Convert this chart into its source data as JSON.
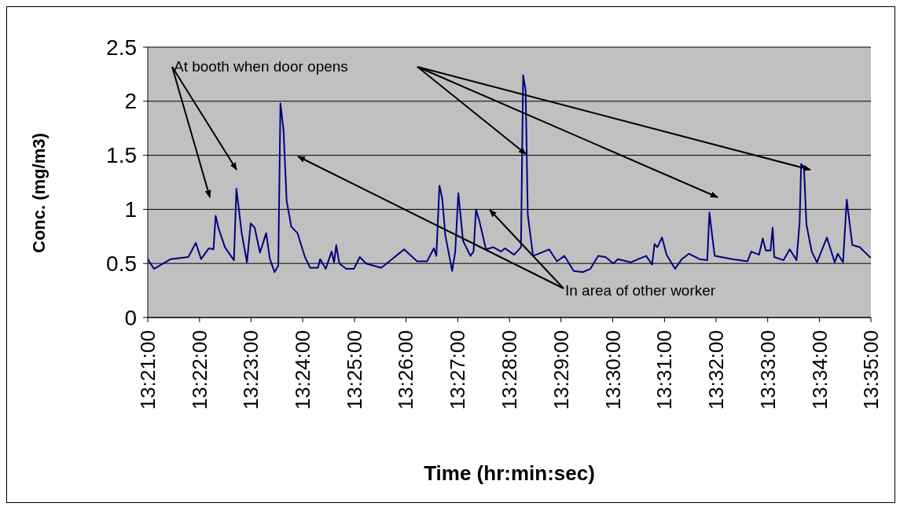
{
  "chart_data": {
    "type": "line",
    "xlabel": "Time (hr:min:sec)",
    "ylabel": "Conc. (mg/m3)",
    "annotations": [
      "At booth when door opens",
      "In area of other worker"
    ],
    "series": [
      {
        "color": "#000080",
        "x": [
          13.35,
          13.352,
          13.3574,
          13.3631,
          13.3655,
          13.3672,
          13.3697,
          13.3712,
          13.3719,
          13.3729,
          13.3749,
          13.3778,
          13.3786,
          13.3803,
          13.382,
          13.3832,
          13.3845,
          13.3862,
          13.3882,
          13.3894,
          13.3909,
          13.3921,
          13.3928,
          13.3938,
          13.3948,
          13.3963,
          13.3983,
          13.4007,
          13.4024,
          13.4049,
          13.4056,
          13.4074,
          13.4093,
          13.4101,
          13.4108,
          13.4118,
          13.414,
          13.4165,
          13.4184,
          13.4204,
          13.4253,
          13.4271,
          13.4327,
          13.4369,
          13.4401,
          13.4423,
          13.4431,
          13.4441,
          13.445,
          13.446,
          13.4482,
          13.4492,
          13.4502,
          13.4517,
          13.4541,
          13.4551,
          13.4559,
          13.4571,
          13.4591,
          13.4615,
          13.464,
          13.4652,
          13.4682,
          13.4704,
          13.4711,
          13.4719,
          13.4726,
          13.4743,
          13.477,
          13.4795,
          13.482,
          13.4844,
          13.4874,
          13.4903,
          13.4928,
          13.4953,
          13.4977,
          13.5002,
          13.5017,
          13.5058,
          13.5083,
          13.5108,
          13.5127,
          13.5135,
          13.5144,
          13.5159,
          13.5174,
          13.5201,
          13.5223,
          13.5246,
          13.528,
          13.5305,
          13.5312,
          13.5322,
          13.5329,
          13.5386,
          13.5435,
          13.5447,
          13.5472,
          13.5484,
          13.5494,
          13.5509,
          13.5516,
          13.5521,
          13.5551,
          13.5571,
          13.5593,
          13.5603,
          13.5608,
          13.5617,
          13.5625,
          13.5642,
          13.5659,
          13.5691,
          13.5716,
          13.5726,
          13.5743,
          13.5755,
          13.5773,
          13.5797,
          13.5833
        ],
        "values": [
          0.54,
          0.45,
          0.54,
          0.56,
          0.69,
          0.54,
          0.64,
          0.63,
          0.94,
          0.82,
          0.65,
          0.53,
          1.19,
          0.78,
          0.51,
          0.87,
          0.83,
          0.6,
          0.78,
          0.54,
          0.42,
          0.48,
          1.98,
          1.73,
          1.08,
          0.84,
          0.78,
          0.56,
          0.46,
          0.46,
          0.54,
          0.45,
          0.61,
          0.51,
          0.67,
          0.5,
          0.45,
          0.45,
          0.56,
          0.5,
          0.46,
          0.5,
          0.63,
          0.52,
          0.52,
          0.64,
          0.57,
          1.22,
          1.1,
          0.76,
          0.43,
          0.61,
          1.15,
          0.71,
          0.57,
          0.61,
          1.0,
          0.88,
          0.63,
          0.65,
          0.61,
          0.64,
          0.58,
          0.65,
          2.24,
          2.1,
          0.95,
          0.57,
          0.6,
          0.63,
          0.52,
          0.57,
          0.43,
          0.42,
          0.45,
          0.57,
          0.56,
          0.5,
          0.54,
          0.51,
          0.54,
          0.57,
          0.49,
          0.68,
          0.65,
          0.74,
          0.58,
          0.45,
          0.54,
          0.59,
          0.54,
          0.53,
          0.97,
          0.73,
          0.57,
          0.54,
          0.52,
          0.61,
          0.58,
          0.73,
          0.62,
          0.62,
          0.83,
          0.56,
          0.53,
          0.63,
          0.53,
          0.88,
          1.42,
          1.39,
          0.86,
          0.61,
          0.51,
          0.74,
          0.51,
          0.59,
          0.51,
          1.09,
          0.67,
          0.65,
          0.55
        ]
      }
    ],
    "xlim": [
      13.35,
      13.5833
    ],
    "xticks": [
      {
        "value": 13.35,
        "label": "13:21:00"
      },
      {
        "value": 13.3667,
        "label": "13:22:00"
      },
      {
        "value": 13.3833,
        "label": "13:23:00"
      },
      {
        "value": 13.4,
        "label": "13:24:00"
      },
      {
        "value": 13.4167,
        "label": "13:25:00"
      },
      {
        "value": 13.4333,
        "label": "13:26:00"
      },
      {
        "value": 13.45,
        "label": "13:27:00"
      },
      {
        "value": 13.4667,
        "label": "13:28:00"
      },
      {
        "value": 13.4833,
        "label": "13:29:00"
      },
      {
        "value": 13.5,
        "label": "13:30:00"
      },
      {
        "value": 13.5167,
        "label": "13:31:00"
      },
      {
        "value": 13.5333,
        "label": "13:32:00"
      },
      {
        "value": 13.55,
        "label": "13:33:00"
      },
      {
        "value": 13.5667,
        "label": "13:34:00"
      },
      {
        "value": 13.5833,
        "label": "13:35:00"
      }
    ],
    "ylim": [
      0,
      2.5
    ],
    "yticks": [
      0,
      0.5,
      1,
      1.5,
      2,
      2.5
    ],
    "grid": "y",
    "marker": "none",
    "line_style": "solid"
  }
}
